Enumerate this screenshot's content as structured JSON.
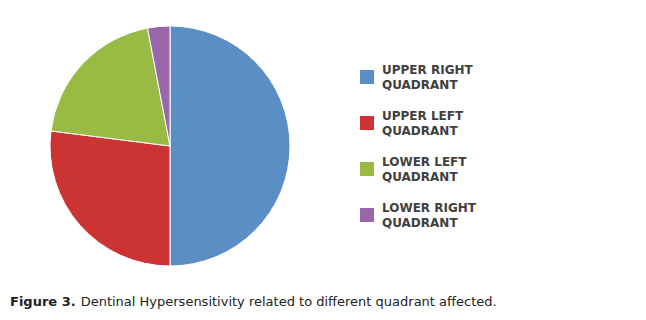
{
  "chart_data": {
    "type": "pie",
    "title": "Figure 3.",
    "subtitle": "Dentinal Hypersensitivity related to different quadrant affected.",
    "categories": [
      "UPPER RIGHT\nQUADRANT",
      "UPPER LEFT\nQUADRANT",
      "LOWER LEFT\nQUADRANT",
      "LOWER RIGHT\nQUADRANT"
    ],
    "values": [
      50,
      27,
      20,
      3
    ],
    "colors": [
      "#5B8EC5",
      "#CC3333",
      "#99BB44",
      "#9966AA"
    ],
    "legend": "right"
  }
}
